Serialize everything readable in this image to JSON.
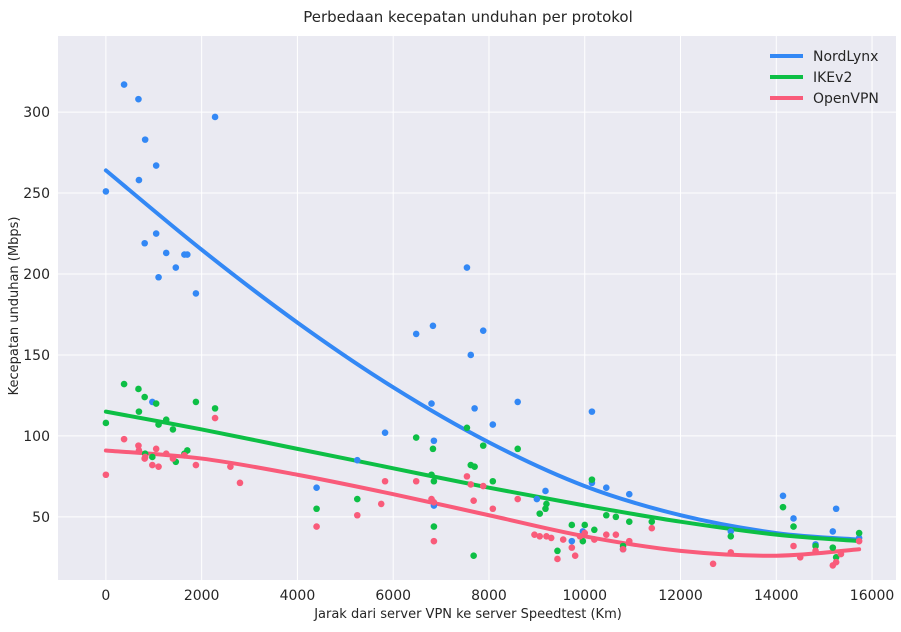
{
  "colors": {
    "background": "#eaeaf2",
    "grid": "#ffffff",
    "NordLynx": "#3388f5",
    "IKEv2": "#0dbf45",
    "OpenVPN": "#f95b7a"
  },
  "chart_data": {
    "type": "scatter",
    "title": "Perbedaan kecepatan unduhan per protokol",
    "xlabel": "Jarak dari server VPN ke server Speedtest (Km)",
    "ylabel": "Kecepatan unduhan (Mbps)",
    "xlim": [
      -1000,
      16500
    ],
    "ylim": [
      11,
      347
    ],
    "xticks": [
      0,
      2000,
      4000,
      6000,
      8000,
      10000,
      12000,
      14000,
      16000
    ],
    "yticks": [
      50,
      100,
      150,
      200,
      250,
      300
    ],
    "grid": true,
    "legend_position": "top-right",
    "legend": [
      "NordLynx",
      "IKEv2",
      "OpenVPN"
    ],
    "series": [
      {
        "name": "NordLynx",
        "color": "#3388f5",
        "points": [
          [
            0,
            251
          ],
          [
            380,
            317
          ],
          [
            680,
            308
          ],
          [
            690,
            258
          ],
          [
            820,
            283
          ],
          [
            810,
            219
          ],
          [
            970,
            121
          ],
          [
            1050,
            267
          ],
          [
            1050,
            225
          ],
          [
            1100,
            198
          ],
          [
            1260,
            213
          ],
          [
            1460,
            204
          ],
          [
            1640,
            212
          ],
          [
            1700,
            212
          ],
          [
            1880,
            188
          ],
          [
            2280,
            297
          ],
          [
            4400,
            68
          ],
          [
            5250,
            85
          ],
          [
            5830,
            102
          ],
          [
            6480,
            163
          ],
          [
            6800,
            120
          ],
          [
            6830,
            168
          ],
          [
            6850,
            97
          ],
          [
            6850,
            57
          ],
          [
            7540,
            204
          ],
          [
            7620,
            150
          ],
          [
            7700,
            117
          ],
          [
            7880,
            165
          ],
          [
            8080,
            107
          ],
          [
            8600,
            121
          ],
          [
            9000,
            61
          ],
          [
            9180,
            66
          ],
          [
            9730,
            35
          ],
          [
            9960,
            41
          ],
          [
            10150,
            115
          ],
          [
            10150,
            71
          ],
          [
            10450,
            68
          ],
          [
            10800,
            30
          ],
          [
            10930,
            64
          ],
          [
            13050,
            41
          ],
          [
            14140,
            63
          ],
          [
            14360,
            49
          ],
          [
            14820,
            33
          ],
          [
            15180,
            41
          ],
          [
            15250,
            55
          ],
          [
            15730,
            37
          ]
        ],
        "trend": [
          [
            0,
            264
          ],
          [
            2000,
            215
          ],
          [
            4000,
            170
          ],
          [
            6000,
            130
          ],
          [
            8000,
            96
          ],
          [
            10000,
            69
          ],
          [
            12000,
            51
          ],
          [
            14000,
            40
          ],
          [
            15730,
            36
          ]
        ]
      },
      {
        "name": "IKEv2",
        "color": "#0dbf45",
        "points": [
          [
            0,
            108
          ],
          [
            380,
            132
          ],
          [
            680,
            129
          ],
          [
            690,
            115
          ],
          [
            810,
            124
          ],
          [
            820,
            89
          ],
          [
            970,
            87
          ],
          [
            1050,
            120
          ],
          [
            1100,
            107
          ],
          [
            1260,
            110
          ],
          [
            1400,
            104
          ],
          [
            1460,
            84
          ],
          [
            1640,
            89
          ],
          [
            1700,
            91
          ],
          [
            1880,
            121
          ],
          [
            2280,
            117
          ],
          [
            4400,
            55
          ],
          [
            5250,
            61
          ],
          [
            6480,
            99
          ],
          [
            6800,
            76
          ],
          [
            6830,
            92
          ],
          [
            6850,
            44
          ],
          [
            6850,
            72
          ],
          [
            7540,
            105
          ],
          [
            7620,
            82
          ],
          [
            7680,
            26
          ],
          [
            7700,
            81
          ],
          [
            7880,
            94
          ],
          [
            8080,
            72
          ],
          [
            8600,
            92
          ],
          [
            9060,
            52
          ],
          [
            9180,
            55
          ],
          [
            9200,
            58
          ],
          [
            9430,
            29
          ],
          [
            9730,
            45
          ],
          [
            9960,
            35
          ],
          [
            10000,
            45
          ],
          [
            10150,
            73
          ],
          [
            10200,
            42
          ],
          [
            10450,
            51
          ],
          [
            10650,
            50
          ],
          [
            10800,
            32
          ],
          [
            10930,
            47
          ],
          [
            11400,
            47
          ],
          [
            13050,
            38
          ],
          [
            14140,
            56
          ],
          [
            14360,
            44
          ],
          [
            14820,
            32
          ],
          [
            15180,
            31
          ],
          [
            15250,
            25
          ],
          [
            15730,
            40
          ]
        ],
        "trend": [
          [
            0,
            115
          ],
          [
            2000,
            104
          ],
          [
            4000,
            92
          ],
          [
            6000,
            80
          ],
          [
            8000,
            68
          ],
          [
            10000,
            57
          ],
          [
            12000,
            47
          ],
          [
            14000,
            39
          ],
          [
            15730,
            35
          ]
        ]
      },
      {
        "name": "OpenVPN",
        "color": "#f95b7a",
        "points": [
          [
            0,
            76
          ],
          [
            380,
            98
          ],
          [
            680,
            94
          ],
          [
            690,
            91
          ],
          [
            810,
            86
          ],
          [
            820,
            87
          ],
          [
            970,
            82
          ],
          [
            1050,
            92
          ],
          [
            1100,
            81
          ],
          [
            1260,
            89
          ],
          [
            1400,
            86
          ],
          [
            1640,
            88
          ],
          [
            1880,
            82
          ],
          [
            2280,
            111
          ],
          [
            2600,
            81
          ],
          [
            2800,
            71
          ],
          [
            4400,
            44
          ],
          [
            5250,
            51
          ],
          [
            5750,
            58
          ],
          [
            5830,
            72
          ],
          [
            6480,
            72
          ],
          [
            6800,
            61
          ],
          [
            6850,
            35
          ],
          [
            6850,
            59
          ],
          [
            7540,
            75
          ],
          [
            7620,
            70
          ],
          [
            7680,
            60
          ],
          [
            7880,
            69
          ],
          [
            8080,
            55
          ],
          [
            8600,
            61
          ],
          [
            8950,
            39
          ],
          [
            9060,
            38
          ],
          [
            9200,
            38
          ],
          [
            9300,
            37
          ],
          [
            9430,
            24
          ],
          [
            9550,
            36
          ],
          [
            9730,
            31
          ],
          [
            9800,
            26
          ],
          [
            9900,
            38
          ],
          [
            10000,
            40
          ],
          [
            10200,
            36
          ],
          [
            10450,
            39
          ],
          [
            10650,
            39
          ],
          [
            10800,
            30
          ],
          [
            10930,
            35
          ],
          [
            11400,
            43
          ],
          [
            12680,
            21
          ],
          [
            13050,
            28
          ],
          [
            14360,
            32
          ],
          [
            14500,
            25
          ],
          [
            14820,
            29
          ],
          [
            15180,
            20
          ],
          [
            15250,
            22
          ],
          [
            15350,
            27
          ],
          [
            15730,
            35
          ]
        ],
        "trend": [
          [
            0,
            91
          ],
          [
            2000,
            86
          ],
          [
            4000,
            76
          ],
          [
            6000,
            64
          ],
          [
            8000,
            51
          ],
          [
            10000,
            38
          ],
          [
            12000,
            29
          ],
          [
            14000,
            26
          ],
          [
            15730,
            30
          ]
        ]
      }
    ]
  }
}
